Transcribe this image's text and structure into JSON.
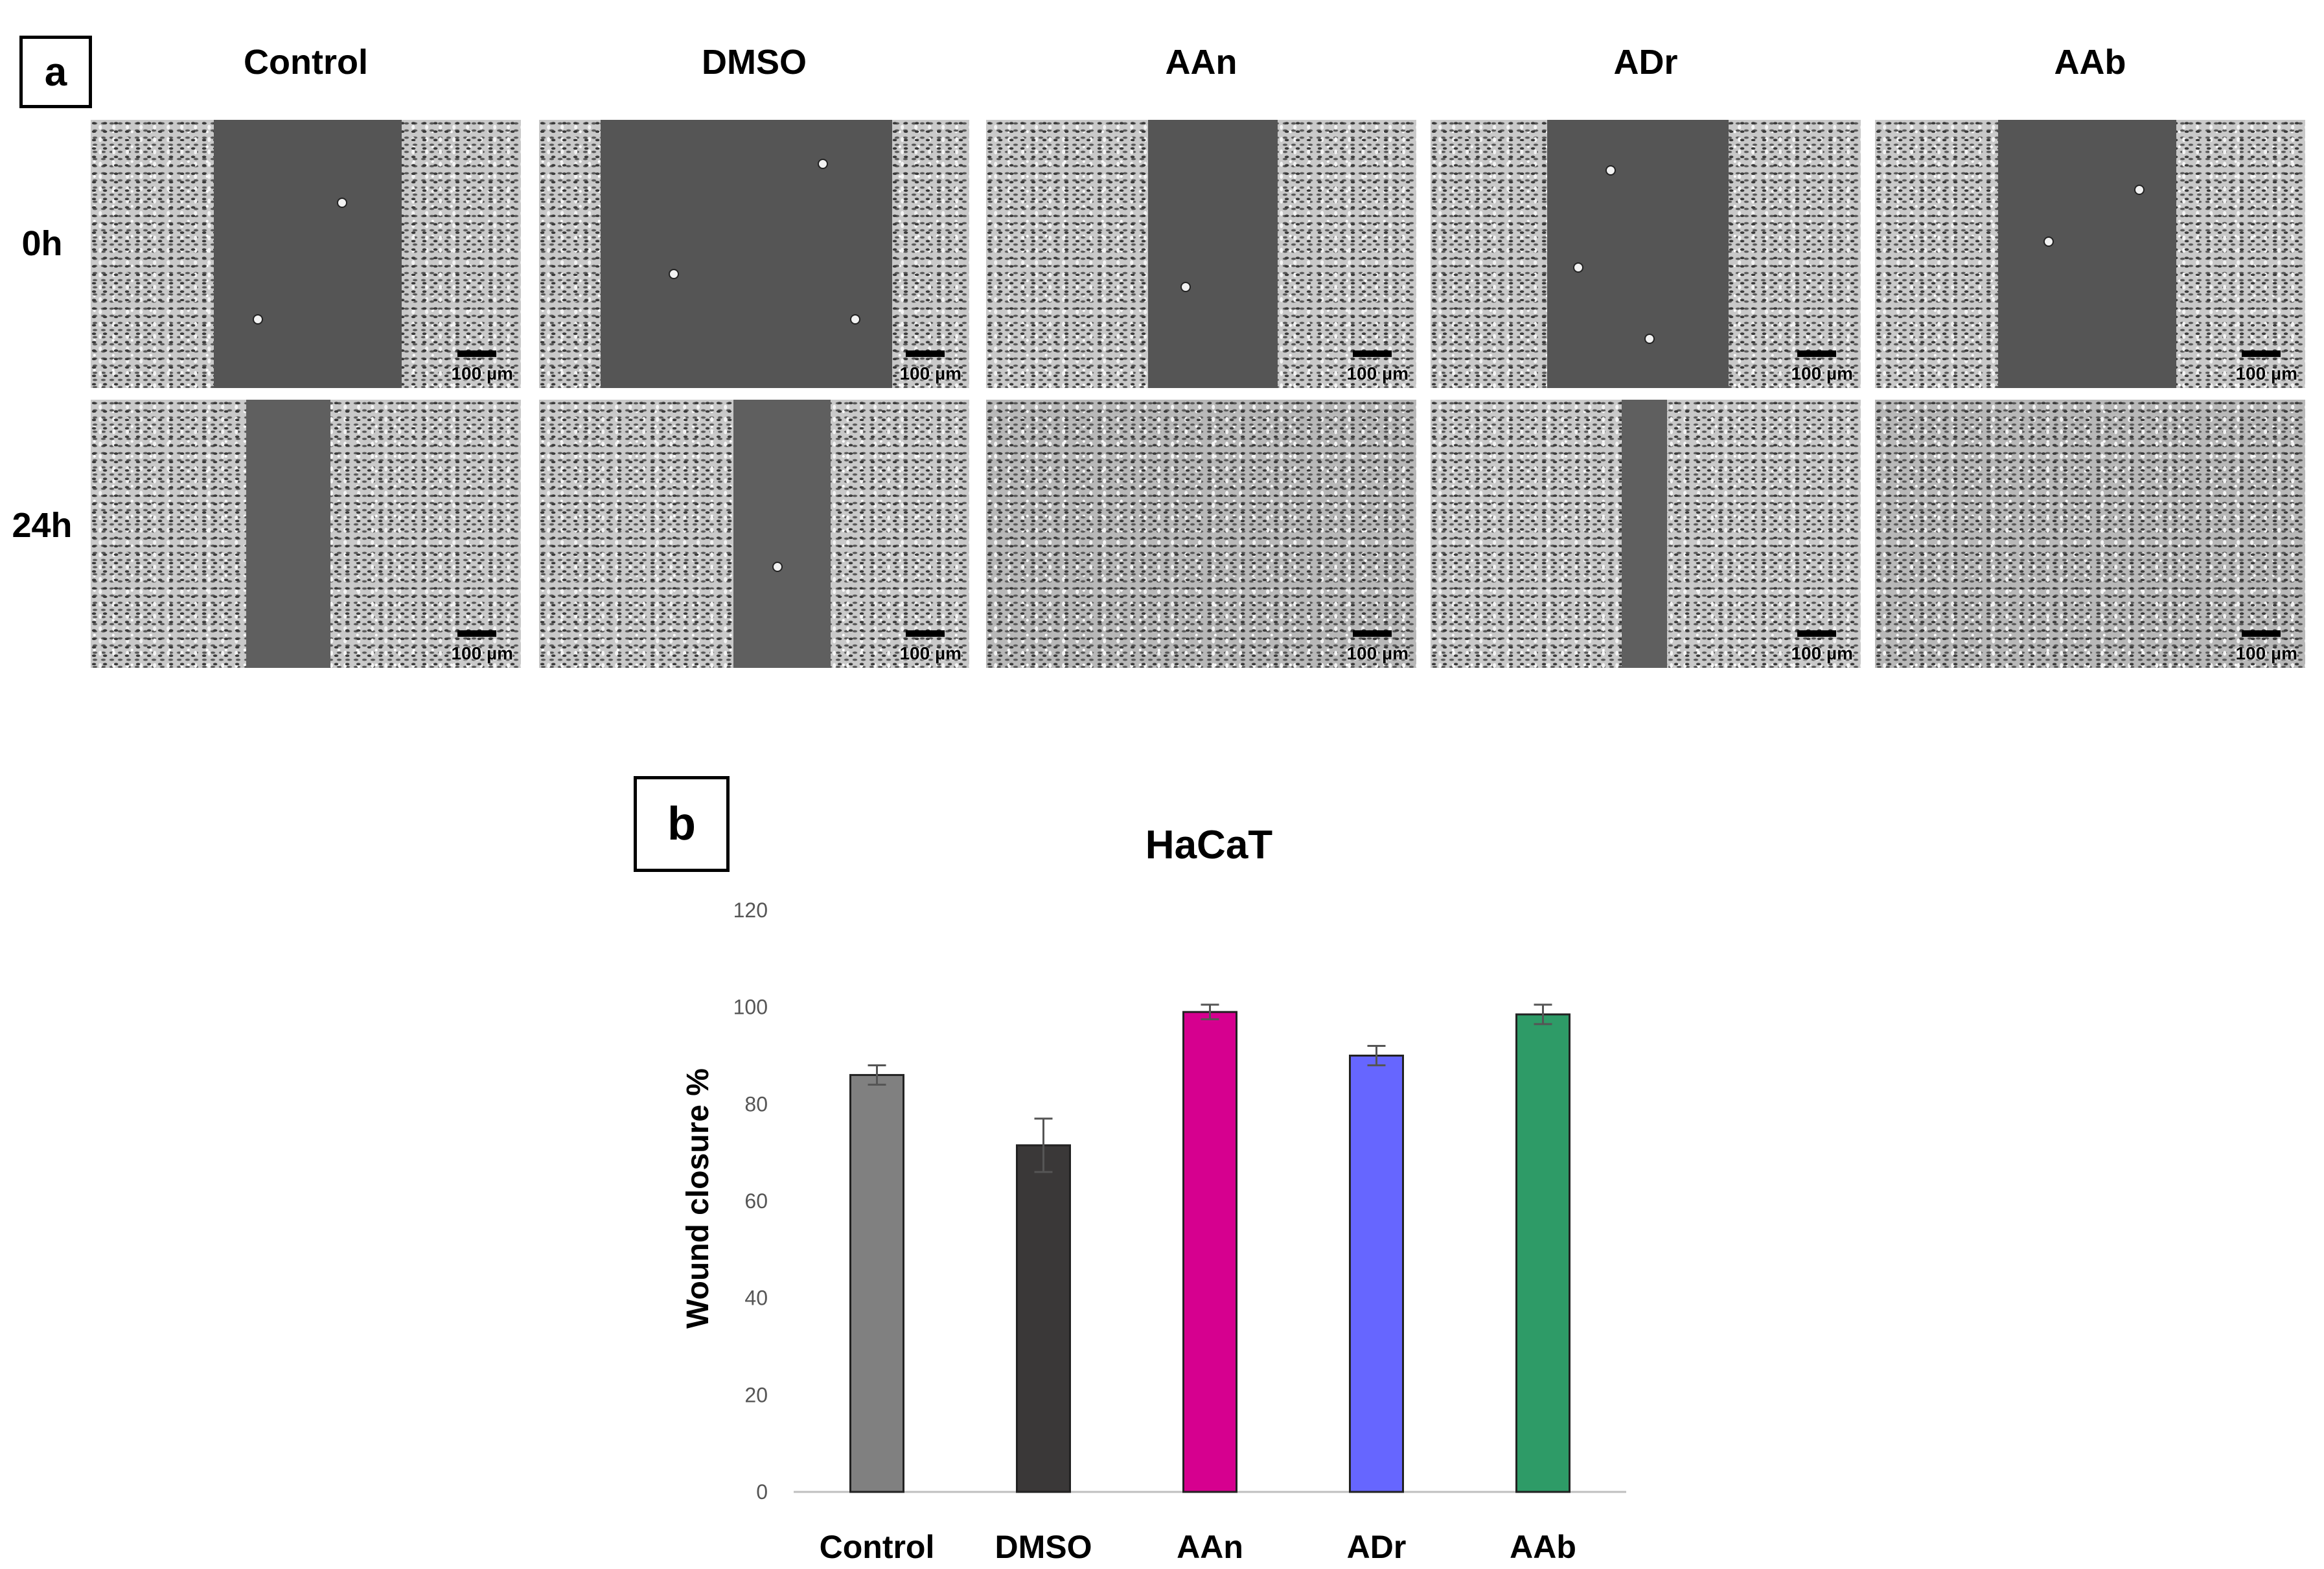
{
  "panel_a": {
    "tag": "a",
    "columns": [
      "Control",
      "DMSO",
      "AAn",
      "ADr",
      "AAb"
    ],
    "rows": [
      "0h",
      "24h"
    ],
    "scale_bar_label": "100 µm"
  },
  "panel_b": {
    "tag": "b"
  },
  "chart_data": {
    "type": "bar",
    "title": "HaCaT",
    "xlabel": "",
    "ylabel": "Wound closure %",
    "categories": [
      "Control",
      "DMSO",
      "AAn",
      "ADr",
      "AAb"
    ],
    "values": [
      86,
      71.5,
      99,
      90,
      98.5
    ],
    "error": [
      2,
      5.5,
      1.5,
      2,
      2
    ],
    "colors": [
      "#808080",
      "#3a3838",
      "#d6008f",
      "#6666ff",
      "#2e9b67"
    ],
    "ylim": [
      0,
      120
    ],
    "yticks": [
      0,
      20,
      40,
      60,
      80,
      100,
      120
    ],
    "grid": false,
    "legend": "none"
  }
}
